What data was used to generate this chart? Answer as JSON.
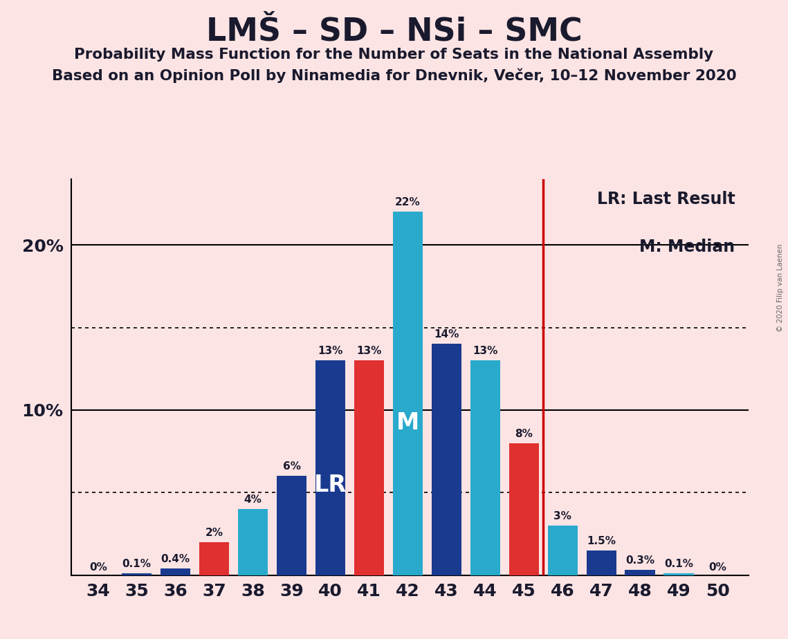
{
  "title": "LMŠ – SD – NSi – SMC",
  "subtitle1": "Probability Mass Function for the Number of Seats in the National Assembly",
  "subtitle2": "Based on an Opinion Poll by Ninamedia for Dnevnik, Večer, 10–12 November 2020",
  "copyright": "© 2020 Filip van Laenen",
  "seats": [
    34,
    35,
    36,
    37,
    38,
    39,
    40,
    41,
    42,
    43,
    44,
    45,
    46,
    47,
    48,
    49,
    50
  ],
  "values": [
    0.0,
    0.1,
    0.4,
    2.0,
    4.0,
    6.0,
    13.0,
    13.0,
    22.0,
    14.0,
    13.0,
    8.0,
    3.0,
    1.5,
    0.3,
    0.1,
    0.0
  ],
  "colors": [
    "#1a3a8f",
    "#1a3a8f",
    "#1a3a8f",
    "#e03030",
    "#29aacc",
    "#1a3a8f",
    "#1a3a8f",
    "#e03030",
    "#29aacc",
    "#1a3a8f",
    "#29aacc",
    "#e03030",
    "#29aacc",
    "#1a3a8f",
    "#1a3a8f",
    "#29aacc",
    "#e03030"
  ],
  "labels": [
    "0%",
    "0.1%",
    "0.4%",
    "2%",
    "4%",
    "6%",
    "13%",
    "13%",
    "22%",
    "14%",
    "13%",
    "8%",
    "3%",
    "1.5%",
    "0.3%",
    "0.1%",
    "0%"
  ],
  "lr_seat": 45,
  "lr_label_seat": 40,
  "median_seat": 42,
  "lr_label": "LR",
  "median_label": "M",
  "legend_lr": "LR: Last Result",
  "legend_m": "M: Median",
  "background_color": "#fce4e4",
  "ylim": [
    0,
    24
  ],
  "dotted_lines": [
    5,
    15
  ],
  "solid_lines": [
    10,
    20
  ],
  "bar_width": 0.78
}
